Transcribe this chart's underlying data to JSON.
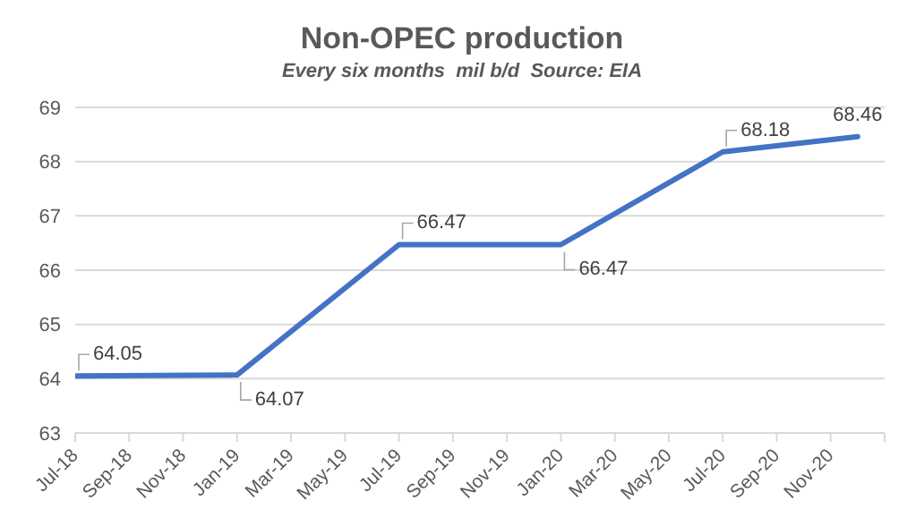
{
  "chart_data": {
    "type": "line",
    "title": "Non-OPEC production",
    "subtitle": "Every six months  mil b/d  Source: EIA",
    "x": [
      "2018-07",
      "2019-01",
      "2019-07",
      "2020-01",
      "2020-07",
      "2020-12"
    ],
    "series": [
      {
        "color": "#4472c4",
        "values": [
          64.05,
          64.07,
          66.47,
          66.47,
          68.18,
          68.46
        ]
      }
    ],
    "xlim": [
      "2018-07",
      "2021-01"
    ],
    "xticks": [
      {
        "value": "2018-07",
        "label": "Jul-18"
      },
      {
        "value": "2018-09",
        "label": "Sep-18"
      },
      {
        "value": "2018-11",
        "label": "Nov-18"
      },
      {
        "value": "2019-01",
        "label": "Jan-19"
      },
      {
        "value": "2019-03",
        "label": "Mar-19"
      },
      {
        "value": "2019-05",
        "label": "May-19"
      },
      {
        "value": "2019-07",
        "label": "Jul-19"
      },
      {
        "value": "2019-09",
        "label": "Sep-19"
      },
      {
        "value": "2019-11",
        "label": "Nov-19"
      },
      {
        "value": "2020-01",
        "label": "Jan-20"
      },
      {
        "value": "2020-03",
        "label": "Mar-20"
      },
      {
        "value": "2020-05",
        "label": "May-20"
      },
      {
        "value": "2020-07",
        "label": "Jul-20"
      },
      {
        "value": "2020-09",
        "label": "Sep-20"
      },
      {
        "value": "2020-11",
        "label": "Nov-20"
      },
      {
        "value": "2021-01",
        "label": null
      }
    ],
    "ylim": [
      63,
      69
    ],
    "yticks": [
      63,
      64,
      65,
      66,
      67,
      68,
      69
    ],
    "grid": "y",
    "legend": false,
    "marker": "none",
    "line_style": "solid",
    "data_labels": true
  }
}
